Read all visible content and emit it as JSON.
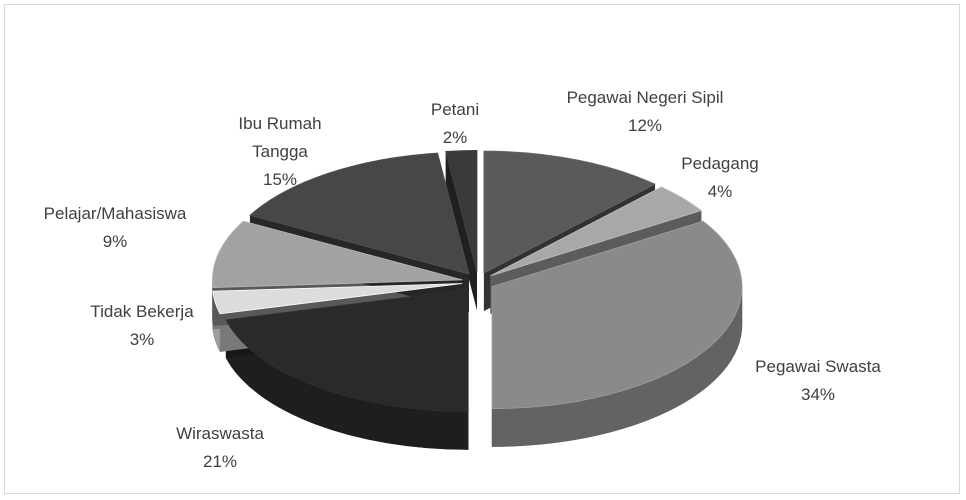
{
  "chart_data": {
    "type": "pie3d",
    "categories": [
      "Pegawai Negeri Sipil",
      "Pedagang",
      "Pegawai Swasta",
      "Wiraswasta",
      "Tidak Bekerja",
      "Pelajar/Mahasiswa",
      "Ibu Rumah Tangga",
      "Petani"
    ],
    "values": [
      12,
      4,
      34,
      21,
      3,
      9,
      15,
      2
    ],
    "value_labels": [
      "12%",
      "4%",
      "34%",
      "21%",
      "3%",
      "9%",
      "15%",
      "2%"
    ],
    "colors": [
      "#5a5a5a",
      "#a8a8a8",
      "#8a8a8a",
      "#2a2a2a",
      "#dcdcdc",
      "#a2a2a2",
      "#474747",
      "#3a3a3a"
    ]
  }
}
